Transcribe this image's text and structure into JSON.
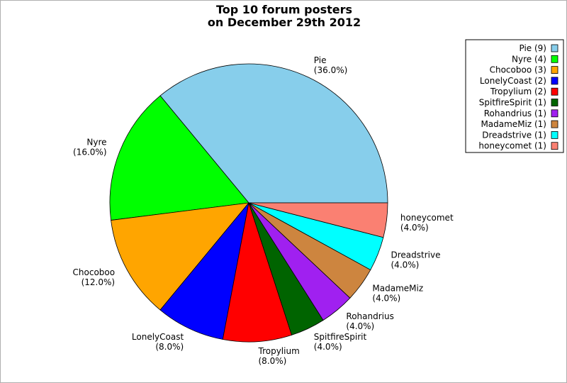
{
  "chart_data": {
    "type": "pie",
    "title_lines": [
      "Top 10 forum posters",
      "on December 29th 2012"
    ],
    "grid": false,
    "legend_position": "top-right",
    "slices": [
      {
        "name": "Pie",
        "value": 9,
        "percent_label": "(36.0%)",
        "legend_label": "Pie (9)",
        "color": "#87ceeb"
      },
      {
        "name": "Nyre",
        "value": 4,
        "percent_label": "(16.0%)",
        "legend_label": "Nyre (4)",
        "color": "#00ff00"
      },
      {
        "name": "Chocoboo",
        "value": 3,
        "percent_label": "(12.0%)",
        "legend_label": "Chocoboo (3)",
        "color": "#ffa500"
      },
      {
        "name": "LonelyCoast",
        "value": 2,
        "percent_label": "(8.0%)",
        "legend_label": "LonelyCoast (2)",
        "color": "#0000ff"
      },
      {
        "name": "Tropylium",
        "value": 2,
        "percent_label": "(8.0%)",
        "legend_label": "Tropylium (2)",
        "color": "#ff0000"
      },
      {
        "name": "SpitfireSpirit",
        "value": 1,
        "percent_label": "(4.0%)",
        "legend_label": "SpitfireSpirit (1)",
        "color": "#006400"
      },
      {
        "name": "Rohandrius",
        "value": 1,
        "percent_label": "(4.0%)",
        "legend_label": "Rohandrius (1)",
        "color": "#a020f0"
      },
      {
        "name": "MadameMiz",
        "value": 1,
        "percent_label": "(4.0%)",
        "legend_label": "MadameMiz (1)",
        "color": "#cd853f"
      },
      {
        "name": "Dreadstrive",
        "value": 1,
        "percent_label": "(4.0%)",
        "legend_label": "Dreadstrive (1)",
        "color": "#00ffff"
      },
      {
        "name": "honeycomet",
        "value": 1,
        "percent_label": "(4.0%)",
        "legend_label": "honeycomet (1)",
        "color": "#fa8072"
      }
    ]
  }
}
